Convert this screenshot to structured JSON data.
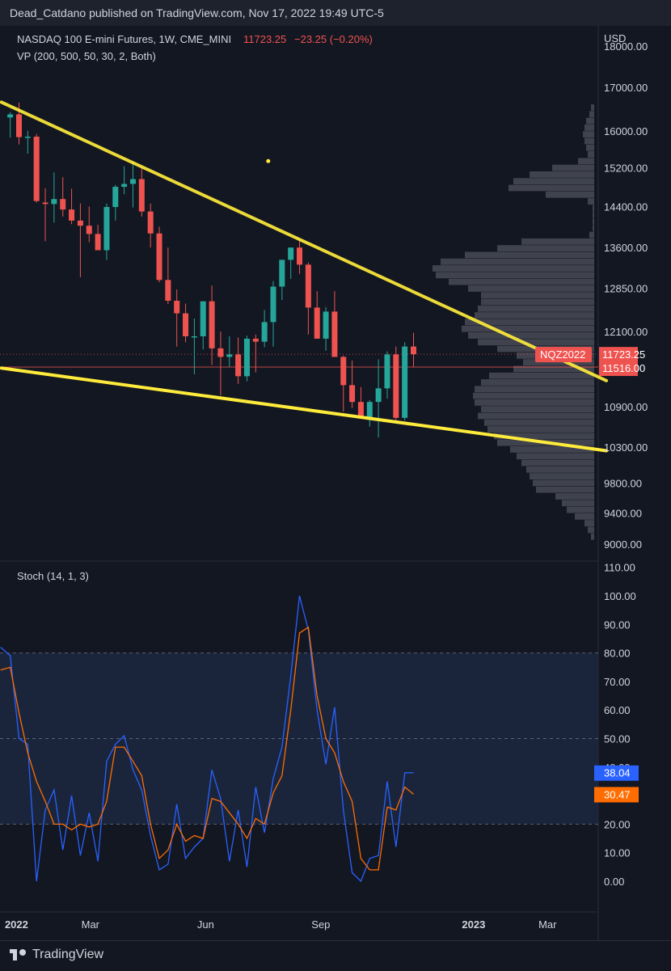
{
  "header": {
    "publisher": "Dead_Catdano published on TradingView.com, Nov 17, 2022 19:49 UTC-5"
  },
  "footer": {
    "brand": "TradingView",
    "logo_icon": "tradingview-logo-icon"
  },
  "colors": {
    "background": "#131722",
    "up": "#26a69a",
    "down": "#ef5350",
    "trendline": "#ffeb3b",
    "volume_profile": "#787b86",
    "stoch_k": "#2962ff",
    "stoch_d": "#ff6d00",
    "band": "#1e2b45"
  },
  "chart_data": [
    {
      "type": "candlestick",
      "symbol": "NASDAQ 100 E-mini Futures, 1W, CME_MINI",
      "last_price": "11723.25",
      "change": "−23.25 (−0.20%)",
      "indicator_label": "VP (200, 500, 50, 30, 2, Both)",
      "currency": "USD",
      "ylim": [
        8850,
        18350
      ],
      "yticks": [
        "18000.00",
        "17000.00",
        "16000.00",
        "15200.00",
        "14400.00",
        "13600.00",
        "12850.00",
        "12100.00",
        "10900.00",
        "10300.00",
        "9800.00",
        "9400.00",
        "9000.00"
      ],
      "price_tags": [
        {
          "label": "NQZ2022",
          "value": "11723.25"
        },
        {
          "label": "",
          "value": "11516.00"
        }
      ],
      "x_tick_labels": [
        "2022",
        "Mar",
        "Jun",
        "Sep",
        "2023",
        "Mar"
      ],
      "candles": [
        {
          "date": "2021-12-27",
          "o": 16300,
          "h": 16420,
          "l": 15850,
          "c": 16370
        },
        {
          "date": "2022-01-03",
          "o": 16370,
          "h": 16640,
          "l": 15700,
          "c": 15860
        },
        {
          "date": "2022-01-10",
          "o": 15860,
          "h": 16000,
          "l": 15500,
          "c": 15870
        },
        {
          "date": "2022-01-17",
          "o": 15870,
          "h": 15930,
          "l": 14480,
          "c": 14510
        },
        {
          "date": "2022-01-24",
          "o": 14480,
          "h": 14770,
          "l": 13720,
          "c": 14450
        },
        {
          "date": "2022-01-31",
          "o": 14450,
          "h": 15100,
          "l": 14080,
          "c": 14550
        },
        {
          "date": "2022-02-07",
          "o": 14550,
          "h": 15000,
          "l": 14200,
          "c": 14340
        },
        {
          "date": "2022-02-14",
          "o": 14340,
          "h": 14760,
          "l": 14050,
          "c": 14120
        },
        {
          "date": "2022-02-21",
          "o": 14120,
          "h": 14460,
          "l": 13050,
          "c": 14020
        },
        {
          "date": "2022-02-28",
          "o": 14020,
          "h": 14400,
          "l": 13700,
          "c": 13860
        },
        {
          "date": "2022-03-07",
          "o": 13860,
          "h": 14040,
          "l": 13560,
          "c": 13550
        },
        {
          "date": "2022-03-14",
          "o": 13550,
          "h": 14460,
          "l": 13370,
          "c": 14390
        },
        {
          "date": "2022-03-21",
          "o": 14390,
          "h": 14840,
          "l": 14120,
          "c": 14800
        },
        {
          "date": "2022-03-28",
          "o": 14800,
          "h": 15230,
          "l": 14650,
          "c": 14860
        },
        {
          "date": "2022-04-04",
          "o": 14860,
          "h": 15320,
          "l": 14380,
          "c": 14960
        },
        {
          "date": "2022-04-11",
          "o": 14960,
          "h": 15230,
          "l": 14200,
          "c": 14300
        },
        {
          "date": "2022-04-18",
          "o": 14300,
          "h": 14460,
          "l": 13600,
          "c": 13870
        },
        {
          "date": "2022-04-25",
          "o": 13870,
          "h": 14000,
          "l": 12960,
          "c": 13000
        },
        {
          "date": "2022-05-02",
          "o": 13000,
          "h": 13600,
          "l": 12570,
          "c": 12630
        },
        {
          "date": "2022-05-09",
          "o": 12630,
          "h": 12830,
          "l": 11850,
          "c": 12410
        },
        {
          "date": "2022-05-16",
          "o": 12410,
          "h": 12580,
          "l": 11920,
          "c": 12020
        },
        {
          "date": "2022-05-23",
          "o": 12020,
          "h": 12320,
          "l": 11400,
          "c": 12020
        },
        {
          "date": "2022-05-30",
          "o": 12020,
          "h": 12580,
          "l": 11800,
          "c": 12620
        },
        {
          "date": "2022-06-06",
          "o": 12620,
          "h": 12900,
          "l": 11550,
          "c": 11820
        },
        {
          "date": "2022-06-13",
          "o": 11820,
          "h": 12100,
          "l": 11070,
          "c": 11680
        },
        {
          "date": "2022-06-20",
          "o": 11680,
          "h": 12020,
          "l": 11520,
          "c": 11720
        },
        {
          "date": "2022-06-27",
          "o": 11720,
          "h": 12000,
          "l": 11250,
          "c": 11370
        },
        {
          "date": "2022-07-04",
          "o": 11370,
          "h": 12030,
          "l": 11290,
          "c": 11980
        },
        {
          "date": "2022-07-11",
          "o": 11980,
          "h": 12050,
          "l": 11430,
          "c": 11930
        },
        {
          "date": "2022-07-18",
          "o": 11930,
          "h": 12470,
          "l": 11840,
          "c": 12260
        },
        {
          "date": "2022-07-25",
          "o": 12260,
          "h": 12980,
          "l": 11850,
          "c": 12880
        },
        {
          "date": "2022-08-01",
          "o": 12880,
          "h": 13350,
          "l": 12640,
          "c": 13370
        },
        {
          "date": "2022-08-08",
          "o": 13370,
          "h": 13590,
          "l": 13020,
          "c": 13600
        },
        {
          "date": "2022-08-15",
          "o": 13600,
          "h": 13750,
          "l": 13110,
          "c": 13280
        },
        {
          "date": "2022-08-22",
          "o": 13280,
          "h": 13320,
          "l": 12050,
          "c": 12510
        },
        {
          "date": "2022-08-29",
          "o": 12510,
          "h": 12800,
          "l": 12000,
          "c": 11980
        },
        {
          "date": "2022-09-05",
          "o": 11980,
          "h": 12520,
          "l": 11780,
          "c": 12440
        },
        {
          "date": "2022-09-12",
          "o": 12440,
          "h": 12800,
          "l": 11700,
          "c": 11680
        },
        {
          "date": "2022-09-19",
          "o": 11680,
          "h": 11700,
          "l": 10820,
          "c": 11230
        },
        {
          "date": "2022-09-26",
          "o": 11230,
          "h": 11620,
          "l": 10880,
          "c": 10970
        },
        {
          "date": "2022-10-03",
          "o": 10970,
          "h": 11200,
          "l": 10810,
          "c": 10720
        },
        {
          "date": "2022-10-10",
          "o": 10720,
          "h": 11000,
          "l": 10600,
          "c": 10970
        },
        {
          "date": "2022-10-17",
          "o": 10970,
          "h": 11640,
          "l": 10440,
          "c": 11180
        },
        {
          "date": "2022-10-24",
          "o": 11180,
          "h": 11770,
          "l": 11020,
          "c": 11720
        },
        {
          "date": "2022-10-31",
          "o": 11720,
          "h": 11850,
          "l": 10650,
          "c": 10730
        },
        {
          "date": "2022-11-07",
          "o": 10730,
          "h": 11920,
          "l": 10690,
          "c": 11850
        },
        {
          "date": "2022-11-14",
          "o": 11850,
          "h": 12080,
          "l": 11510,
          "c": 11723.25
        }
      ],
      "trendlines": [
        {
          "x1": "2021-12-20",
          "y1": 16650,
          "x2": "2023-04-17",
          "y2": 11300
        },
        {
          "x1": "2021-12-20",
          "y1": 11500,
          "x2": "2023-04-17",
          "y2": 10250
        }
      ],
      "marker": {
        "date": "2022-07-21",
        "price": 15340
      },
      "volume_profile": {
        "price_min": 9050,
        "price_max": 16600,
        "rows": [
          2,
          3,
          5,
          6,
          7,
          6,
          5,
          4,
          10,
          26,
          40,
          50,
          53,
          30,
          4,
          1,
          1,
          1,
          1,
          3,
          45,
          60,
          80,
          95,
          100,
          98,
          90,
          78,
          70,
          70,
          72,
          74,
          80,
          82,
          78,
          72,
          60,
          48,
          44,
          50,
          65,
          70,
          74,
          75,
          74,
          70,
          72,
          68,
          66,
          62,
          60,
          52,
          48,
          45,
          42,
          40,
          38,
          36,
          24,
          20,
          17,
          12,
          6,
          4,
          2
        ]
      }
    },
    {
      "type": "line",
      "indicator_label": "Stoch (14, 1, 3)",
      "ylim": [
        0,
        110
      ],
      "yticks": [
        "110.00",
        "100.00",
        "90.00",
        "80.00",
        "70.00",
        "60.00",
        "50.00",
        "40.00",
        "30.00",
        "20.00",
        "10.00",
        "0.00"
      ],
      "band": [
        20,
        80
      ],
      "last_values": {
        "k": "38.04",
        "d": "30.47"
      },
      "k": [
        79,
        50,
        48,
        0,
        25,
        32,
        11,
        30,
        9,
        24,
        7,
        42,
        48,
        51,
        39,
        32,
        16,
        4,
        6,
        27,
        8,
        12,
        15,
        39,
        29,
        7,
        25,
        5,
        33,
        17,
        36,
        47,
        72,
        100,
        88,
        60,
        41,
        61,
        25,
        3,
        0,
        8,
        9,
        35,
        12,
        38,
        38.04
      ],
      "d": [
        75,
        59,
        45,
        35,
        28,
        20,
        20,
        18,
        20,
        19,
        20,
        28,
        47,
        47,
        42,
        37,
        20,
        8,
        11,
        20,
        14,
        16,
        15,
        29,
        28,
        24,
        20,
        15,
        22,
        20,
        31,
        37,
        60,
        87,
        89,
        65,
        50,
        45,
        35,
        28,
        8,
        4,
        4,
        26,
        25,
        33,
        30.47
      ]
    }
  ]
}
